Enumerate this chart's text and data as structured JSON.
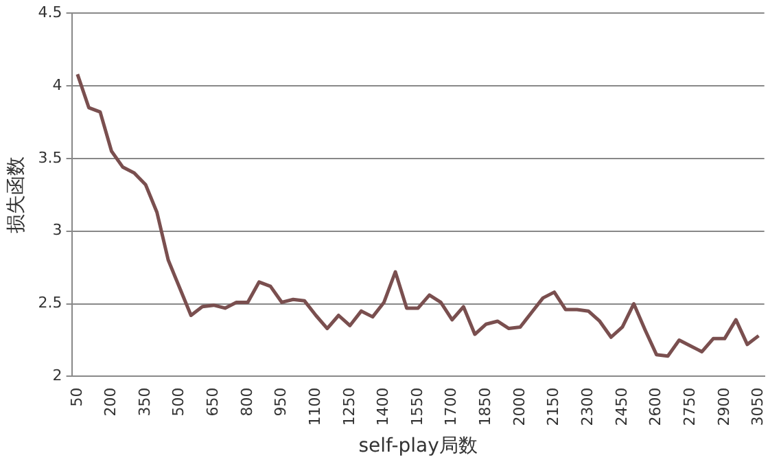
{
  "chart_data": {
    "type": "line",
    "xlabel": "self-play局数",
    "ylabel": "损失函数",
    "categories": [
      "50",
      null,
      null,
      "200",
      null,
      null,
      "350",
      null,
      null,
      "500",
      null,
      null,
      "650",
      null,
      null,
      "800",
      null,
      null,
      "950",
      null,
      null,
      "1100",
      null,
      null,
      "1250",
      null,
      null,
      "1400",
      null,
      null,
      "1550",
      null,
      null,
      "1700",
      null,
      null,
      "1850",
      null,
      null,
      "2000",
      null,
      null,
      "2150",
      null,
      null,
      "2300",
      null,
      null,
      "2450",
      null,
      null,
      "2600",
      null,
      null,
      "2750",
      null,
      null,
      "2900",
      null,
      null,
      "3050"
    ],
    "series": [
      {
        "color": "#7a4f4f",
        "values": [
          4.08,
          3.85,
          3.82,
          3.55,
          3.44,
          3.4,
          3.32,
          3.13,
          2.8,
          2.61,
          2.42,
          2.48,
          2.49,
          2.47,
          2.51,
          2.51,
          2.65,
          2.62,
          2.51,
          2.53,
          2.52,
          2.42,
          2.33,
          2.42,
          2.35,
          2.45,
          2.41,
          2.51,
          2.72,
          2.47,
          2.47,
          2.56,
          2.51,
          2.39,
          2.48,
          2.29,
          2.36,
          2.38,
          2.33,
          2.34,
          2.44,
          2.54,
          2.58,
          2.46,
          2.46,
          2.45,
          2.38,
          2.27,
          2.34,
          2.5,
          2.32,
          2.15,
          2.14,
          2.25,
          2.21,
          2.17,
          2.26,
          2.26,
          2.39,
          2.22,
          2.28
        ]
      }
    ],
    "ylim": [
      2,
      4.5
    ],
    "yticks": [
      2,
      2.5,
      3,
      3.5,
      4,
      4.5
    ],
    "grid": "y",
    "legend": false,
    "marker": "none",
    "line_style": "solid"
  }
}
